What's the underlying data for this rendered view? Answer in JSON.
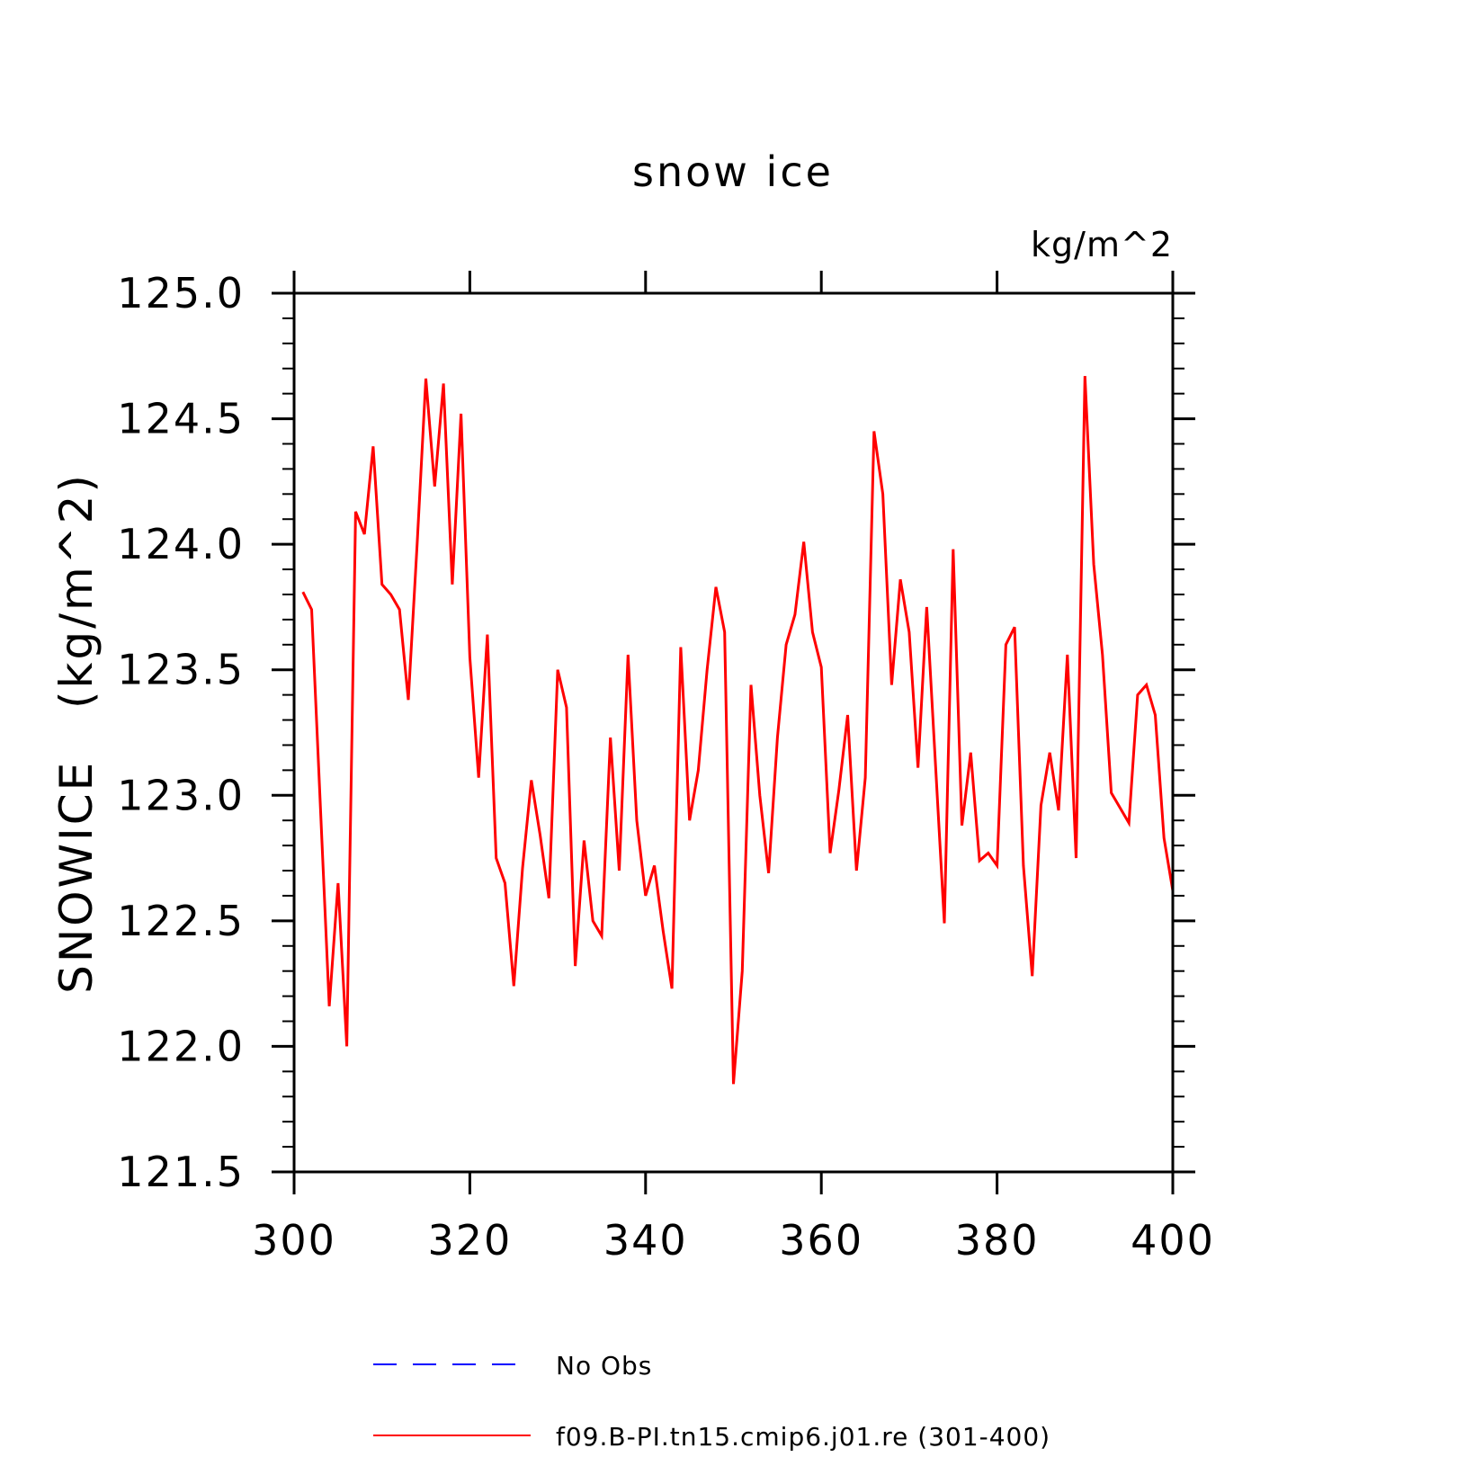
{
  "chart_data": {
    "type": "line",
    "title": "snow ice",
    "units_label": "kg/m^2",
    "ylabel": "SNOWICE   (kg/m^2)",
    "xlabel": "",
    "xlim": [
      300,
      400
    ],
    "ylim": [
      121.5,
      125.0
    ],
    "x_major_ticks": [
      300,
      320,
      340,
      360,
      380,
      400
    ],
    "x_tick_labels": [
      "300",
      "320",
      "340",
      "360",
      "380",
      "400"
    ],
    "y_major_ticks": [
      121.5,
      122.0,
      122.5,
      123.0,
      123.5,
      124.0,
      124.5,
      125.0
    ],
    "y_tick_labels": [
      "121.5",
      "122.0",
      "122.5",
      "123.0",
      "123.5",
      "124.0",
      "124.5",
      "125.0"
    ],
    "grid": false,
    "legend_position": "bottom",
    "series": [
      {
        "name": "No Obs",
        "color": "#0000ff",
        "style": "dashed",
        "x": [],
        "values": []
      },
      {
        "name": "f09.B-PI.tn15.cmip6.j01.re (301-400)",
        "color": "#ff0000",
        "style": "solid",
        "x": [
          301,
          302,
          303,
          304,
          305,
          306,
          307,
          308,
          309,
          310,
          311,
          312,
          313,
          314,
          315,
          316,
          317,
          318,
          319,
          320,
          321,
          322,
          323,
          324,
          325,
          326,
          327,
          328,
          329,
          330,
          331,
          332,
          333,
          334,
          335,
          336,
          337,
          338,
          339,
          340,
          341,
          342,
          343,
          344,
          345,
          346,
          347,
          348,
          349,
          350,
          351,
          352,
          353,
          354,
          355,
          356,
          357,
          358,
          359,
          360,
          361,
          362,
          363,
          364,
          365,
          366,
          367,
          368,
          369,
          370,
          371,
          372,
          373,
          374,
          375,
          376,
          377,
          378,
          379,
          380,
          381,
          382,
          383,
          384,
          385,
          386,
          387,
          388,
          389,
          390,
          391,
          392,
          393,
          394,
          395,
          396,
          397,
          398,
          399,
          400
        ],
        "values": [
          123.81,
          123.74,
          122.95,
          122.16,
          122.65,
          122.0,
          124.13,
          124.04,
          124.39,
          123.84,
          123.8,
          123.74,
          123.38,
          124.0,
          124.66,
          124.23,
          124.64,
          123.84,
          124.52,
          123.55,
          123.07,
          123.64,
          122.75,
          122.65,
          122.24,
          122.71,
          123.06,
          122.84,
          122.59,
          123.5,
          123.35,
          122.32,
          122.82,
          122.5,
          122.44,
          123.23,
          122.7,
          123.56,
          122.9,
          122.6,
          122.72,
          122.46,
          122.23,
          123.59,
          122.9,
          123.1,
          123.5,
          123.83,
          123.65,
          121.85,
          122.3,
          123.44,
          123.0,
          122.69,
          123.23,
          123.6,
          123.72,
          124.01,
          123.65,
          123.51,
          122.77,
          123.02,
          123.32,
          122.7,
          123.07,
          124.45,
          124.2,
          123.44,
          123.86,
          123.65,
          123.11,
          123.75,
          123.12,
          122.49,
          123.98,
          122.88,
          123.17,
          122.74,
          122.77,
          122.72,
          123.6,
          123.67,
          122.72,
          122.28,
          122.96,
          123.17,
          122.94,
          123.56,
          122.75,
          124.67,
          123.92,
          123.56,
          123.01,
          122.95,
          122.89,
          123.4,
          123.44,
          123.32,
          122.83,
          122.62
        ]
      }
    ]
  }
}
